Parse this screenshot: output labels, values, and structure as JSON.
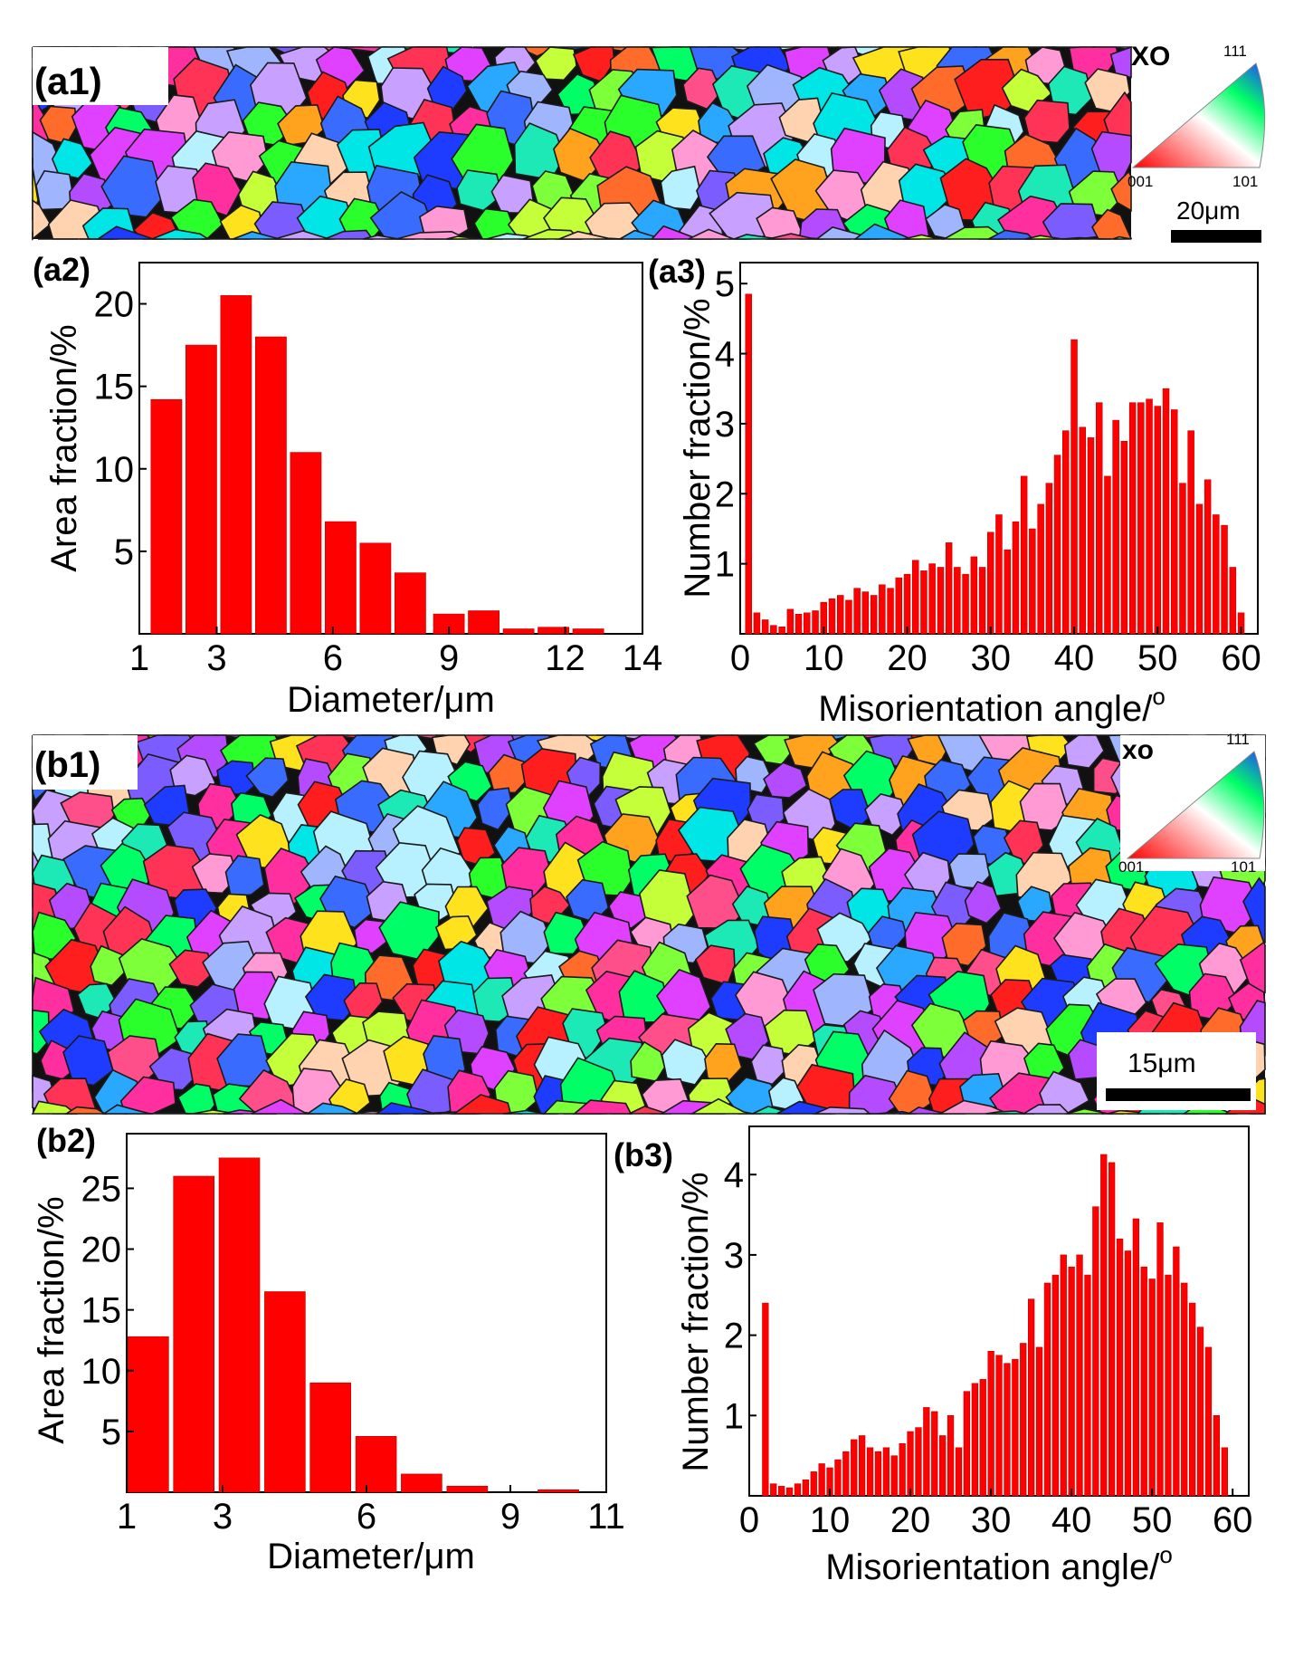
{
  "colors": {
    "bar": "#ff0000",
    "bar_dark": "#c80000",
    "axis": "#000000"
  },
  "maps": [
    {
      "label": "(a1)",
      "ipf_label": "XO",
      "ipf_top": "111",
      "ipf_left": "001",
      "ipf_right": "101",
      "scale_label": "20μm",
      "seed": 7,
      "grain_size": 46
    },
    {
      "label": "(b1)",
      "ipf_label": "xo",
      "ipf_top": "111",
      "ipf_left": "001",
      "ipf_right": "101",
      "scale_label": "15μm",
      "seed": 19,
      "grain_size": 44
    }
  ],
  "chart_data": [
    {
      "id": "a2",
      "label": "(a2)",
      "type": "bar",
      "xlabel": "Diameter/μm",
      "ylabel": "Area fraction/%",
      "xlim": [
        1,
        14
      ],
      "ylim": [
        0,
        22.5
      ],
      "xticks": [
        1,
        3,
        6,
        9,
        12,
        14
      ],
      "yticks": [
        5,
        10,
        15,
        20
      ],
      "bar_width": 0.8,
      "x": [
        1.7,
        2.6,
        3.5,
        4.4,
        5.3,
        6.2,
        7.1,
        8.0,
        9.0,
        9.9,
        10.8,
        11.7,
        12.6,
        13.5
      ],
      "values": [
        14.2,
        17.5,
        20.5,
        18.0,
        11.0,
        6.8,
        5.5,
        3.7,
        1.2,
        1.4,
        0.3,
        0.4,
        0.3,
        0
      ]
    },
    {
      "id": "a3",
      "label": "(a3)",
      "type": "bar",
      "xlabel": "Misorientation angle/o",
      "ylabel": "Number fraction/%",
      "xlim": [
        0,
        62
      ],
      "ylim": [
        0,
        5.3
      ],
      "xticks": [
        0,
        10,
        20,
        30,
        40,
        50,
        60
      ],
      "yticks": [
        1,
        2,
        3,
        4,
        5
      ],
      "bar_width": 0.75,
      "x": [
        1,
        2,
        3,
        4,
        5,
        6,
        7,
        8,
        9,
        10,
        11,
        12,
        13,
        14,
        15,
        16,
        17,
        18,
        19,
        20,
        21,
        22,
        23,
        24,
        25,
        26,
        27,
        28,
        29,
        30,
        31,
        32,
        33,
        34,
        35,
        36,
        37,
        38,
        39,
        40,
        41,
        42,
        43,
        44,
        45,
        46,
        47,
        48,
        49,
        50,
        51,
        52,
        53,
        54,
        55,
        56,
        57,
        58,
        59,
        60
      ],
      "values": [
        4.85,
        0.3,
        0.2,
        0.12,
        0.1,
        0.35,
        0.28,
        0.3,
        0.33,
        0.45,
        0.5,
        0.55,
        0.48,
        0.65,
        0.6,
        0.55,
        0.7,
        0.65,
        0.8,
        0.85,
        1.05,
        0.9,
        1.0,
        0.95,
        1.3,
        0.95,
        0.85,
        1.1,
        0.95,
        1.45,
        1.7,
        1.2,
        1.6,
        2.25,
        1.5,
        1.85,
        2.15,
        2.55,
        2.9,
        4.2,
        2.95,
        2.8,
        3.3,
        2.25,
        3.05,
        2.75,
        3.3,
        3.3,
        3.35,
        3.25,
        3.5,
        3.2,
        2.15,
        2.9,
        1.85,
        2.2,
        1.7,
        1.55,
        0.95,
        0.3
      ]
    },
    {
      "id": "b2",
      "label": "(b2)",
      "type": "bar",
      "xlabel": "Diameter/μm",
      "ylabel": "Area fraction/%",
      "xlim": [
        1,
        11
      ],
      "ylim": [
        0,
        29.5
      ],
      "xticks": [
        1,
        3,
        6,
        9,
        11
      ],
      "yticks": [
        5,
        10,
        15,
        20,
        25
      ],
      "bar_width": 0.85,
      "x": [
        1.45,
        2.4,
        3.35,
        4.3,
        5.25,
        6.2,
        7.15,
        8.1,
        9.05,
        10.0
      ],
      "values": [
        12.8,
        26.0,
        27.5,
        16.5,
        9.0,
        4.6,
        1.5,
        0.5,
        0,
        0.2
      ]
    },
    {
      "id": "b3",
      "label": "(b3)",
      "type": "bar",
      "xlabel": "Misorientation angle/o",
      "ylabel": "Number fraction/%",
      "xlim": [
        0,
        62
      ],
      "ylim": [
        0,
        4.6
      ],
      "xticks": [
        0,
        10,
        20,
        30,
        40,
        50,
        60
      ],
      "yticks": [
        1,
        2,
        3,
        4
      ],
      "bar_width": 0.75,
      "x": [
        2,
        3,
        4,
        5,
        6,
        7,
        8,
        9,
        10,
        11,
        12,
        13,
        14,
        15,
        16,
        17,
        18,
        19,
        20,
        21,
        22,
        23,
        24,
        25,
        26,
        27,
        28,
        29,
        30,
        31,
        32,
        33,
        34,
        35,
        36,
        37,
        38,
        39,
        40,
        41,
        42,
        43,
        44,
        45,
        46,
        47,
        48,
        49,
        50,
        51,
        52,
        53,
        54,
        55,
        56,
        57,
        58,
        59
      ],
      "values": [
        2.4,
        0.15,
        0.12,
        0.1,
        0.15,
        0.2,
        0.3,
        0.4,
        0.35,
        0.45,
        0.55,
        0.7,
        0.75,
        0.6,
        0.55,
        0.6,
        0.5,
        0.65,
        0.8,
        0.85,
        1.1,
        1.05,
        0.75,
        1.0,
        0.6,
        1.3,
        1.4,
        1.45,
        1.8,
        1.75,
        1.65,
        1.7,
        1.9,
        2.45,
        1.85,
        2.65,
        2.75,
        3.0,
        2.85,
        3.0,
        2.75,
        3.6,
        4.25,
        4.15,
        3.2,
        3.05,
        3.45,
        2.85,
        2.7,
        3.4,
        2.75,
        3.1,
        2.65,
        2.4,
        2.1,
        1.85,
        1.0,
        0.6
      ]
    }
  ]
}
